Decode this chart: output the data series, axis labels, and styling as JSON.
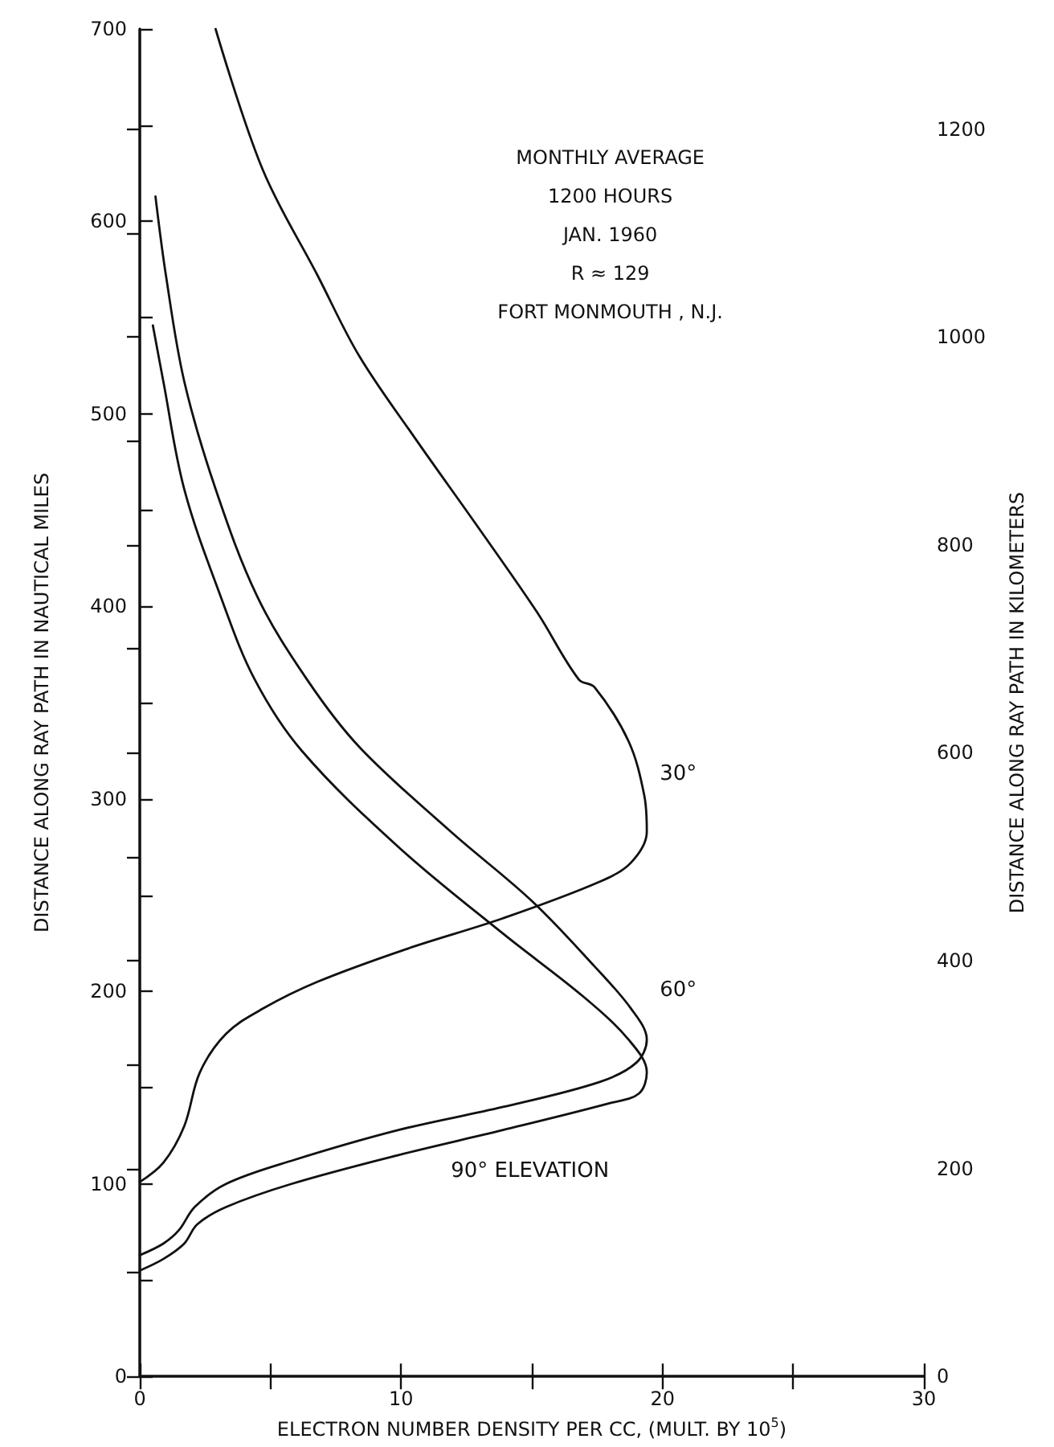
{
  "chart_data": {
    "type": "line",
    "xlabel": "ELECTRON NUMBER DENSITY PER CC, (MULT. BY 10$^{5}$)",
    "ylabel": "DISTANCE ALONG RAY PATH IN NAUTICAL MILES",
    "y2label": "DISTANCE ALONG RAY PATH IN KILOMETERS",
    "xlim": [
      0,
      30
    ],
    "xticks": [
      0,
      {
        "value": 5,
        "label": null
      },
      10,
      {
        "value": 15,
        "label": null
      },
      20,
      {
        "value": 25,
        "label": null
      },
      30
    ],
    "ylim": [
      0,
      700
    ],
    "yticks": [
      0,
      {
        "value": 50,
        "label": null
      },
      100,
      {
        "value": 150,
        "label": null
      },
      200,
      {
        "value": 250,
        "label": null
      },
      300,
      {
        "value": 350,
        "label": null
      },
      400,
      {
        "value": 450,
        "label": null
      },
      500,
      {
        "value": 550,
        "label": null
      },
      600,
      {
        "value": 650,
        "label": null
      },
      700
    ],
    "y2lim": [
      0,
      1296.4
    ],
    "y2ticks": [
      0,
      {
        "value": 100,
        "label": null
      },
      200,
      {
        "value": 300,
        "label": null
      },
      400,
      {
        "value": 500,
        "label": null
      },
      600,
      {
        "value": 700,
        "label": null
      },
      800,
      {
        "value": 900,
        "label": null
      },
      1000,
      {
        "value": 1100,
        "label": null
      },
      1200
    ],
    "grid": false,
    "legend": false,
    "marker": "none",
    "line_style": "solid",
    "series": [
      {
        "name": "30°",
        "color": "#111111",
        "x": [
          2.9,
          4.7,
          6.8,
          8.4,
          10.5,
          12.9,
          15.2,
          16.8,
          17.4,
          18.7,
          19.3,
          19.4,
          18.8,
          17.6,
          13.9,
          10.2,
          6.8,
          4.7,
          3.3,
          2.3,
          1.7,
          0.9,
          0
        ],
        "values": [
          700,
          627,
          572,
          530,
          488,
          442,
          397,
          362,
          358,
          330,
          302,
          283,
          267,
          257,
          238,
          222,
          205,
          191,
          178,
          158,
          130,
          111,
          101
        ]
      },
      {
        "name": "60°",
        "color": "#111111",
        "x": [
          0.6,
          1.0,
          1.7,
          2.9,
          4.5,
          6.4,
          8.4,
          11.9,
          15.0,
          17.4,
          18.8,
          19.4,
          19.0,
          17.6,
          13.9,
          9.9,
          5.8,
          3.3,
          2.1,
          1.5,
          0.9,
          0
        ],
        "values": [
          613,
          572,
          517,
          461,
          405,
          362,
          327,
          283,
          247,
          213,
          191,
          175,
          163,
          153,
          140,
          128,
          112,
          100,
          88,
          76,
          69,
          63
        ]
      },
      {
        "name": "90° ELEVATION",
        "color": "#111111",
        "x": [
          0.5,
          0.9,
          1.7,
          3.1,
          4.4,
          6.2,
          9.9,
          13.9,
          17.0,
          18.7,
          19.4,
          19.1,
          18.0,
          13.9,
          9.9,
          5.8,
          3.3,
          2.2,
          1.7,
          0.9,
          0
        ],
        "values": [
          546,
          517,
          461,
          405,
          362,
          325,
          275,
          230,
          197,
          175,
          158,
          147,
          142,
          128,
          115,
          100,
          88,
          79,
          69,
          61,
          55
        ]
      }
    ],
    "annotations": [
      "MONTHLY AVERAGE",
      "1200 HOURS",
      "JAN. 1960",
      "R ≈ 129",
      "FORT MONMOUTH , N.J."
    ]
  }
}
